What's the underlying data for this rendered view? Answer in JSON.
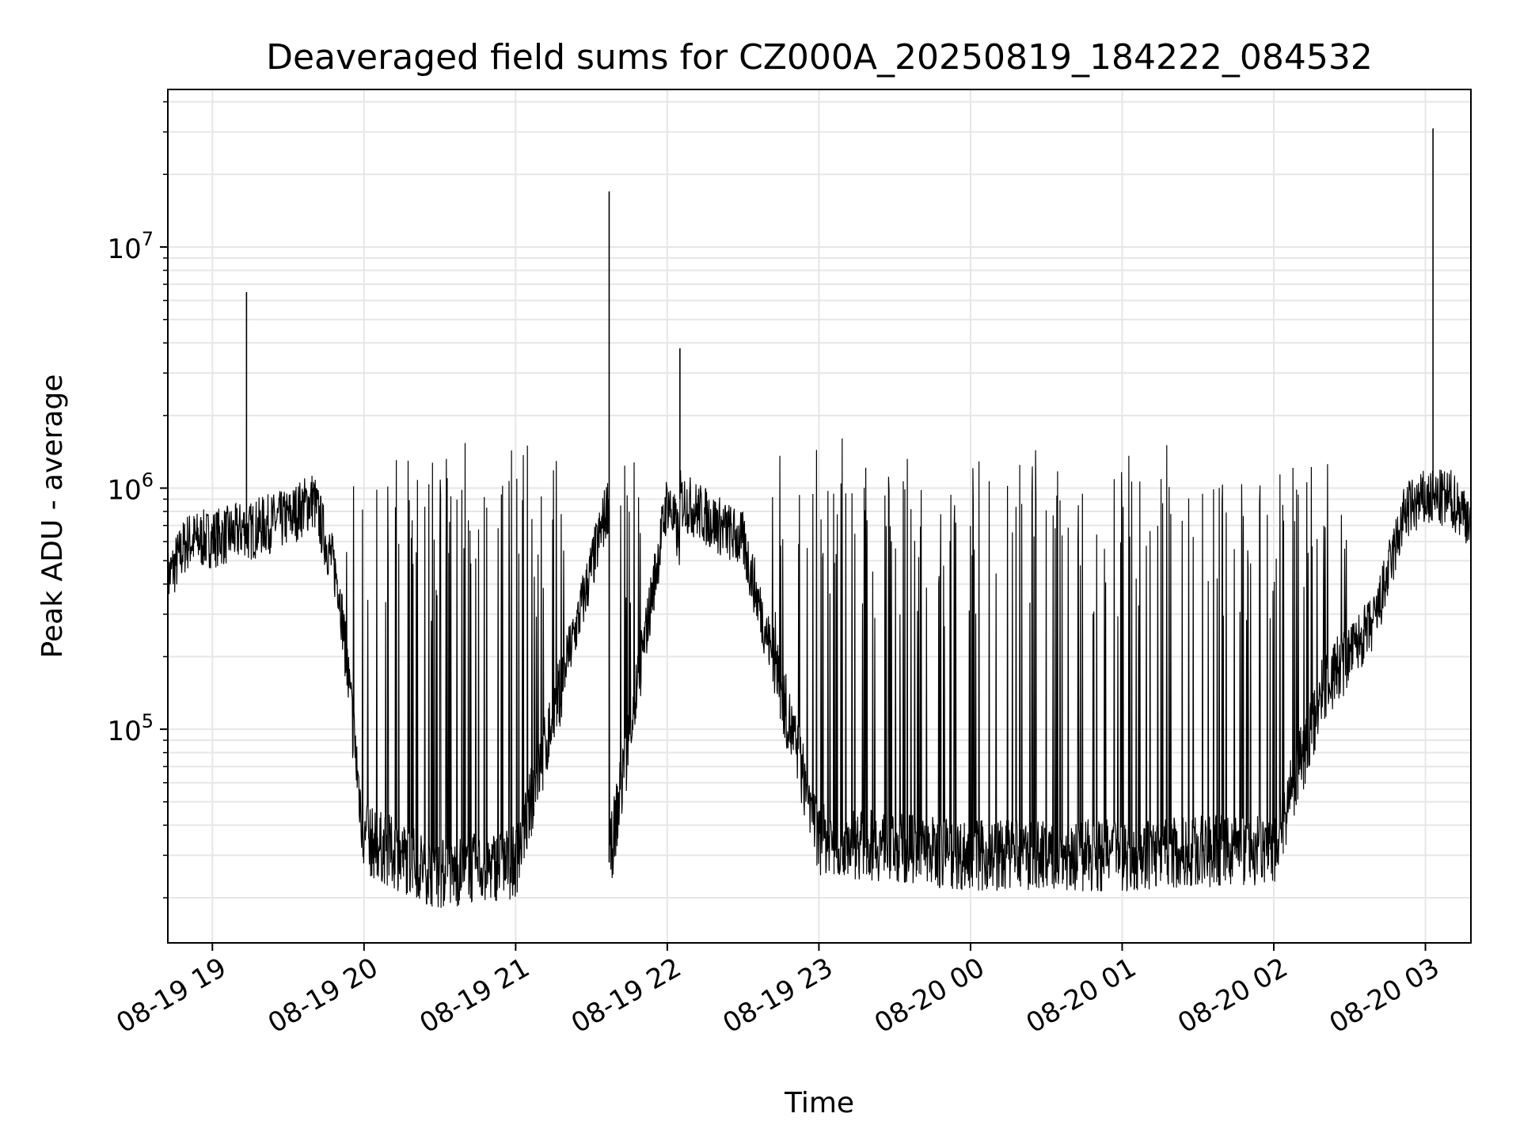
{
  "chart_data": {
    "type": "line",
    "title": "Deaveraged field sums for CZ000A_20250819_184222_084532",
    "xlabel": "Time",
    "ylabel": "Peak ADU - average",
    "yscale": "log",
    "xlim": [
      "2025-08-19T18:42:22",
      "2025-08-20T03:18:00"
    ],
    "ylim": [
      13000,
      45000000
    ],
    "grid": true,
    "line_color": "#000000",
    "x_ticks": [
      {
        "value": "2025-08-19T19:00:00",
        "label": "08-19 19"
      },
      {
        "value": "2025-08-19T20:00:00",
        "label": "08-19 20"
      },
      {
        "value": "2025-08-19T21:00:00",
        "label": "08-19 21"
      },
      {
        "value": "2025-08-19T22:00:00",
        "label": "08-19 22"
      },
      {
        "value": "2025-08-19T23:00:00",
        "label": "08-19 23"
      },
      {
        "value": "2025-08-20T00:00:00",
        "label": "08-20 00"
      },
      {
        "value": "2025-08-20T01:00:00",
        "label": "08-20 01"
      },
      {
        "value": "2025-08-20T02:00:00",
        "label": "08-20 02"
      },
      {
        "value": "2025-08-20T03:00:00",
        "label": "08-20 03"
      }
    ],
    "y_ticks": [
      {
        "value": 100000,
        "base": "10",
        "exp": "5"
      },
      {
        "value": 1000000,
        "base": "10",
        "exp": "6"
      },
      {
        "value": 10000000,
        "base": "10",
        "exp": "7"
      }
    ],
    "series": [
      {
        "values": [
          [
            "2025-08-19T18:42:22",
            420000
          ],
          [
            "2025-08-19T18:50:00",
            600000
          ],
          [
            "2025-08-19T19:00:00",
            620000
          ],
          [
            "2025-08-19T19:10:00",
            650000
          ],
          [
            "2025-08-19T19:13:30",
            6500000
          ],
          [
            "2025-08-19T19:20:00",
            700000
          ],
          [
            "2025-08-19T19:30:00",
            750000
          ],
          [
            "2025-08-19T19:40:00",
            900000
          ],
          [
            "2025-08-19T19:50:00",
            400000
          ],
          [
            "2025-08-19T20:00:00",
            35000
          ],
          [
            "2025-08-19T20:30:00",
            25000
          ],
          [
            "2025-08-19T21:00:00",
            28000
          ],
          [
            "2025-08-19T21:37:00",
            17000000
          ],
          [
            "2025-08-19T22:00:00",
            900000
          ],
          [
            "2025-08-19T22:05:00",
            3800000
          ],
          [
            "2025-08-19T22:30:00",
            600000
          ],
          [
            "2025-08-19T23:00:00",
            35000
          ],
          [
            "2025-08-20T00:00:00",
            30000
          ],
          [
            "2025-08-20T01:00:00",
            30000
          ],
          [
            "2025-08-20T02:00:00",
            32000
          ],
          [
            "2025-08-20T02:20:00",
            150000
          ],
          [
            "2025-08-20T02:40:00",
            280000
          ],
          [
            "2025-08-20T02:52:00",
            800000
          ],
          [
            "2025-08-20T03:00:00",
            900000
          ],
          [
            "2025-08-20T03:03:00",
            31000000
          ],
          [
            "2025-08-20T03:10:00",
            900000
          ],
          [
            "2025-08-20T03:18:00",
            750000
          ]
        ]
      }
    ]
  }
}
